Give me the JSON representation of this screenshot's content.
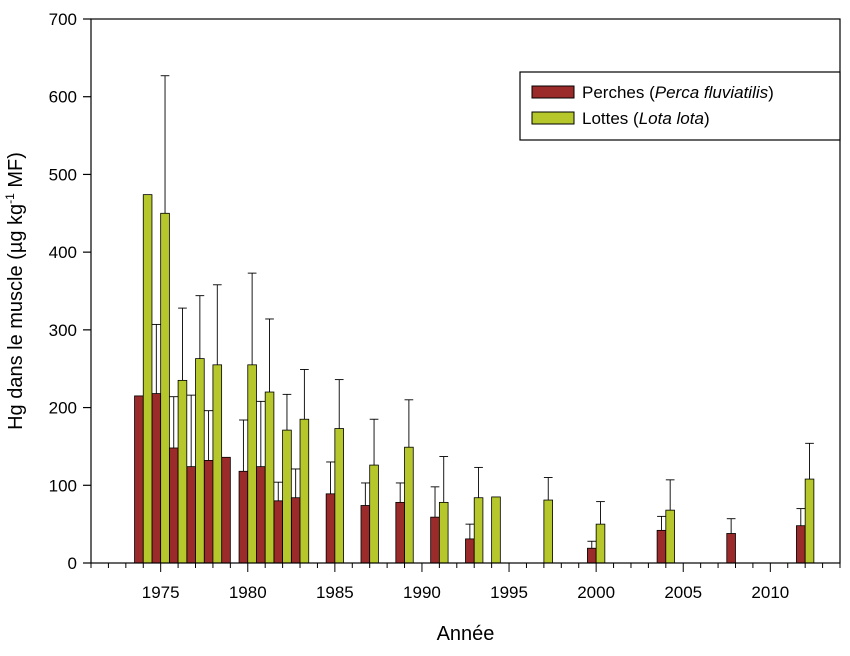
{
  "chart_data": {
    "type": "bar",
    "xlabel": "Année",
    "ylabel": {
      "pre": "Hg dans le muscle (µg kg",
      "sup": "-1",
      "post": " MF)"
    },
    "xlim": [
      1971,
      2014
    ],
    "ylim": [
      0,
      700
    ],
    "x_ticks": [
      1975,
      1980,
      1985,
      1990,
      1995,
      2000,
      2005,
      2010
    ],
    "y_ticks": [
      0,
      100,
      200,
      300,
      400,
      500,
      600,
      700
    ],
    "legend_position": "top-right",
    "series": [
      {
        "id": "perches",
        "name": {
          "common": "Perches (",
          "latin": "Perca fluviatilis",
          "close": ")"
        },
        "color": "#9B2A2A",
        "points": [
          {
            "x": 1974,
            "y": 215
          },
          {
            "x": 1975,
            "y": 218,
            "err": 307
          },
          {
            "x": 1976,
            "y": 148,
            "err": 214
          },
          {
            "x": 1977,
            "y": 124,
            "err": 216
          },
          {
            "x": 1978,
            "y": 132,
            "err": 196
          },
          {
            "x": 1979,
            "y": 136
          },
          {
            "x": 1980,
            "y": 118,
            "err": 184
          },
          {
            "x": 1981,
            "y": 124,
            "err": 208
          },
          {
            "x": 1982,
            "y": 80,
            "err": 104
          },
          {
            "x": 1983,
            "y": 84,
            "err": 121
          },
          {
            "x": 1985,
            "y": 89,
            "err": 130
          },
          {
            "x": 1987,
            "y": 74,
            "err": 103
          },
          {
            "x": 1989,
            "y": 78,
            "err": 103
          },
          {
            "x": 1991,
            "y": 59,
            "err": 98
          },
          {
            "x": 1993,
            "y": 31,
            "err": 50
          },
          {
            "x": 2000,
            "y": 19,
            "err": 28
          },
          {
            "x": 2004,
            "y": 42,
            "err": 60
          },
          {
            "x": 2008,
            "y": 38,
            "err": 57
          },
          {
            "x": 2012,
            "y": 48,
            "err": 70
          }
        ]
      },
      {
        "id": "lottes",
        "name": {
          "common": "Lottes (",
          "latin": "Lota lota",
          "close": ")"
        },
        "color": "#B5C72B",
        "points": [
          {
            "x": 1974,
            "y": 474
          },
          {
            "x": 1975,
            "y": 450,
            "err": 627
          },
          {
            "x": 1976,
            "y": 235,
            "err": 328
          },
          {
            "x": 1977,
            "y": 263,
            "err": 344
          },
          {
            "x": 1978,
            "y": 255,
            "err": 358
          },
          {
            "x": 1980,
            "y": 255,
            "err": 373
          },
          {
            "x": 1981,
            "y": 220,
            "err": 314
          },
          {
            "x": 1982,
            "y": 171,
            "err": 217
          },
          {
            "x": 1983,
            "y": 185,
            "err": 249
          },
          {
            "x": 1985,
            "y": 173,
            "err": 236
          },
          {
            "x": 1987,
            "y": 126,
            "err": 185
          },
          {
            "x": 1989,
            "y": 149,
            "err": 210
          },
          {
            "x": 1991,
            "y": 78,
            "err": 137
          },
          {
            "x": 1993,
            "y": 84,
            "err": 123
          },
          {
            "x": 1994,
            "y": 85
          },
          {
            "x": 1997,
            "y": 81,
            "err": 110
          },
          {
            "x": 2000,
            "y": 50,
            "err": 79
          },
          {
            "x": 2004,
            "y": 68,
            "err": 107
          },
          {
            "x": 2012,
            "y": 108,
            "err": 154
          }
        ]
      }
    ]
  }
}
